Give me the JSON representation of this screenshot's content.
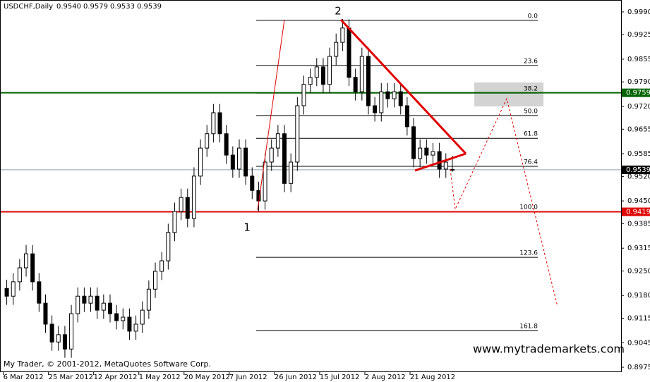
{
  "chart_data": {
    "type": "candlestick",
    "title": "USDCHF,Daily",
    "header_values": [
      {
        "value": 0.954,
        "label": "0.9540"
      },
      0.9579,
      0.9533,
      0.9539
    ],
    "open": [
      0.92,
      0.9178,
      0.9219,
      0.9259,
      0.9299,
      0.9219,
      0.9158,
      0.9098,
      0.9047,
      0.9068,
      0.9027,
      0.9128,
      0.9178,
      0.9158,
      0.9178,
      0.9138,
      0.9158,
      0.9128,
      0.9108,
      0.9118,
      0.9078,
      0.9098,
      0.9138,
      0.9198,
      0.9249,
      0.9279,
      0.936,
      0.942,
      0.946,
      0.94,
      0.9521,
      0.9601,
      0.9642,
      0.9702,
      0.9642,
      0.9581,
      0.9541,
      0.9601,
      0.9521,
      0.948,
      0.945,
      0.9561,
      0.9601,
      0.9642,
      0.95,
      0.9561,
      0.9722,
      0.9783,
      0.9803,
      0.9833,
      0.9783,
      0.9863,
      0.9903,
      0.9944,
      0.9803,
      0.9762,
      0.9863,
      0.9722,
      0.9702,
      0.9762,
      0.9742,
      0.9762,
      0.9722,
      0.9662,
      0.9571,
      0.9601,
      0.9581,
      0.9591,
      0.9541,
      0.954
    ],
    "high": [
      0.9225,
      0.9244,
      0.9284,
      0.9324,
      0.9324,
      0.9244,
      0.9183,
      0.9123,
      0.9093,
      0.9093,
      0.9153,
      0.9203,
      0.9203,
      0.9203,
      0.9203,
      0.9183,
      0.9183,
      0.9153,
      0.9143,
      0.9143,
      0.9123,
      0.9163,
      0.9223,
      0.9274,
      0.9304,
      0.9385,
      0.9445,
      0.9485,
      0.9485,
      0.9546,
      0.9626,
      0.9667,
      0.9727,
      0.9727,
      0.9667,
      0.9606,
      0.9626,
      0.9626,
      0.9546,
      0.9505,
      0.9586,
      0.9626,
      0.9667,
      0.9667,
      0.9586,
      0.9747,
      0.9808,
      0.9828,
      0.9858,
      0.9858,
      0.9888,
      0.9928,
      0.997,
      0.9969,
      0.9828,
      0.9888,
      0.9888,
      0.9747,
      0.9787,
      0.9787,
      0.9787,
      0.9787,
      0.9747,
      0.9687,
      0.9626,
      0.9626,
      0.9616,
      0.9616,
      0.9586,
      0.9579
    ],
    "low": [
      0.9153,
      0.9153,
      0.9194,
      0.9234,
      0.9194,
      0.9133,
      0.9073,
      0.9022,
      0.9022,
      0.9002,
      0.9002,
      0.9103,
      0.9133,
      0.9133,
      0.9113,
      0.9113,
      0.9103,
      0.9083,
      0.9083,
      0.9053,
      0.9053,
      0.9073,
      0.9113,
      0.9173,
      0.9224,
      0.9254,
      0.9335,
      0.9395,
      0.9375,
      0.9375,
      0.9496,
      0.9576,
      0.9617,
      0.9617,
      0.9556,
      0.9516,
      0.9516,
      0.9496,
      0.9455,
      0.942,
      0.9425,
      0.9536,
      0.9576,
      0.9475,
      0.9475,
      0.9536,
      0.9697,
      0.9758,
      0.9778,
      0.9758,
      0.9758,
      0.9838,
      0.9878,
      0.9778,
      0.9737,
      0.9737,
      0.9697,
      0.9677,
      0.9677,
      0.9717,
      0.9717,
      0.9697,
      0.9637,
      0.9546,
      0.9546,
      0.9556,
      0.9556,
      0.9516,
      0.9516,
      0.9533
    ],
    "close": [
      0.9178,
      0.9219,
      0.9259,
      0.9299,
      0.9219,
      0.9158,
      0.9098,
      0.9047,
      0.9068,
      0.9027,
      0.9128,
      0.9178,
      0.9158,
      0.9178,
      0.9138,
      0.9158,
      0.9128,
      0.9108,
      0.9118,
      0.9078,
      0.9098,
      0.9138,
      0.9198,
      0.9249,
      0.9279,
      0.936,
      0.942,
      0.946,
      0.94,
      0.9521,
      0.9601,
      0.9642,
      0.9702,
      0.9642,
      0.9581,
      0.9541,
      0.9601,
      0.9521,
      0.948,
      0.945,
      0.9561,
      0.9601,
      0.9642,
      0.95,
      0.9561,
      0.9722,
      0.9783,
      0.9803,
      0.9833,
      0.9783,
      0.9863,
      0.9903,
      0.9944,
      0.9803,
      0.9762,
      0.9863,
      0.9722,
      0.9702,
      0.9762,
      0.9742,
      0.9762,
      0.9722,
      0.9662,
      0.9571,
      0.9601,
      0.9581,
      0.9591,
      0.9541,
      0.9561,
      0.9539
    ],
    "up_color": "#ffffff",
    "down_color": "#000000",
    "ylim": [
      0.8961,
      1.0018
    ],
    "yticks": [
      {
        "value": 0.999,
        "label": "0.9990"
      },
      0.9925,
      0.9855,
      {
        "value": 0.979,
        "label": "0.9790"
      },
      {
        "value": 0.972,
        "label": "0.9720"
      },
      0.9655,
      0.9585,
      {
        "value": 0.952,
        "label": "0.9520"
      },
      {
        "value": 0.945,
        "label": "0.9450"
      },
      0.9385,
      0.9315,
      {
        "value": 0.925,
        "label": "0.9250"
      },
      {
        "value": 0.918,
        "label": "0.9180"
      },
      0.9115,
      0.9045,
      0.8975
    ],
    "xticks": [
      {
        "value": 0,
        "label": "6 Mar 2012"
      },
      {
        "value": 7,
        "label": "25 Mar 2012"
      },
      {
        "value": 14,
        "label": "12 Apr 2012"
      },
      {
        "value": 21,
        "label": "1 May 2012"
      },
      {
        "value": 28,
        "label": "20 May 2012"
      },
      {
        "value": 35,
        "label": "7 Jun 2012"
      },
      {
        "value": 42,
        "label": "26 Jun 2012"
      },
      {
        "value": 49,
        "label": "15 Jul 2012"
      },
      {
        "value": 56,
        "label": "2 Aug 2012"
      },
      {
        "value": 63,
        "label": "21 Aug 2012"
      }
    ],
    "fib_levels": [
      {
        "label": "0.0",
        "price": 0.9966
      },
      {
        "label": "23.6",
        "price": 0.9837
      },
      {
        "label": "38.2",
        "price": 0.9758
      },
      {
        "label": "50.0",
        "price": 0.9694
      },
      {
        "label": "61.8",
        "price": 0.9629
      },
      {
        "label": "76.4",
        "price": 0.9549
      },
      {
        "label": "100.0",
        "price": 0.942
      },
      {
        "label": "123.6",
        "price": 0.9289
      },
      {
        "label": "161.8",
        "price": 0.908
      }
    ],
    "price_lines": [
      {
        "price": 0.9759,
        "color": "#006400"
      },
      {
        "price": 0.9419,
        "color": "#e00000"
      },
      {
        "price": 0.9539,
        "color": "#8fa0b0"
      }
    ],
    "annotations": [
      "1",
      "2"
    ],
    "footer": "My Trader, © 2001-2012, MetaQuotes Software Corp.",
    "watermark": "www.mytrademarkets.com"
  }
}
